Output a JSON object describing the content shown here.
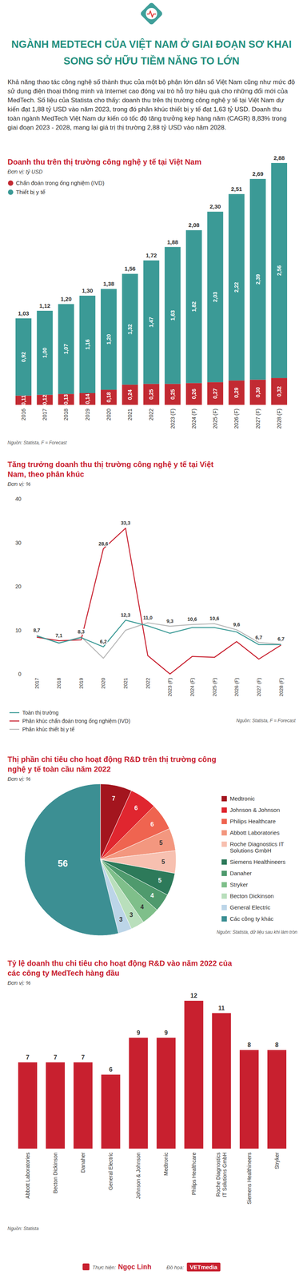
{
  "header": {
    "title": [
      "NGÀNH MEDTECH CỦA VIỆT NAM Ở GIAI ĐOẠN SƠ KHAI",
      "SONG SỞ HỮU TIỀM NĂNG TO LỚN"
    ],
    "intro": "Khả năng thao tác công nghệ số thành thục của một bộ phận lớn dân số Việt Nam cũng như mức độ sử dụng điện thoại thông minh và Internet cao đóng vai trò hỗ trợ hiệu quả cho những đổi mới của MedTech. Số liệu của Statista cho thấy: doanh thu trên thị trường công nghệ y tế tại Việt Nam dự kiến đạt 1,88 tỷ USD vào năm 2023, trong đó phân khúc thiết bị y tế đạt 1,63 tỷ USD. Doanh thu toàn ngành MedTech Việt Nam dự kiến có tốc độ tăng trưởng kép hàng năm (CAGR) 8,83% trong giai đoạn 2023 - 2028, mang lại giá trị thị trường 2,88 tỷ USD vào năm 2028."
  },
  "chart_data": [
    {
      "type": "bar",
      "stacked": true,
      "title": "Doanh thu trên thị trường công nghệ y tế tại Việt Nam",
      "subtitle": "Đơn vị: tỷ USD",
      "source": "Nguồn: Statista, F = Forecast",
      "categories": [
        "2016",
        "2017",
        "2018",
        "2019",
        "2020",
        "2021",
        "2022",
        "2023 (F)",
        "2024 (F)",
        "2025 (F)",
        "2026 (F)",
        "2027 (F)",
        "2028 (F)"
      ],
      "series": [
        {
          "name": "Chẩn đoán trong ống nghiệm (IVD)",
          "color": "#c22a32",
          "values": [
            0.11,
            0.12,
            0.13,
            0.14,
            0.18,
            0.24,
            0.25,
            0.25,
            0.26,
            0.27,
            0.29,
            0.3,
            0.32
          ],
          "value_labels": [
            "0,11",
            "0,12",
            "0,13",
            "0,14",
            "0,18",
            "0,24",
            "0,25",
            "0,25",
            "0,26",
            "0,27",
            "0,29",
            "0,30",
            "0,32"
          ]
        },
        {
          "name": "Thiết bị y tế",
          "color": "#3b9a96",
          "values": [
            0.92,
            1.0,
            1.07,
            1.16,
            1.2,
            1.32,
            1.47,
            1.63,
            1.82,
            2.03,
            2.22,
            2.39,
            2.56
          ],
          "value_labels": [
            "0,92",
            "1,00",
            "1,07",
            "1,16",
            "1,20",
            "1,32",
            "1,47",
            "1,63",
            "1,82",
            "2,03",
            "2,22",
            "2,39",
            "2,56"
          ]
        }
      ],
      "totals": {
        "values": [
          1.03,
          1.12,
          1.2,
          1.3,
          1.38,
          1.56,
          1.72,
          1.88,
          2.08,
          2.3,
          2.51,
          2.69,
          2.88
        ],
        "value_labels": [
          "1,03",
          "1,12",
          "1,20",
          "1,30",
          "1,38",
          "1,56",
          "1,72",
          "1,88",
          "2,08",
          "2,30",
          "2,51",
          "2,69",
          "2,88"
        ]
      },
      "ylim": [
        0,
        2.88
      ],
      "data_labels": true,
      "tick_labels": "x",
      "grid": false,
      "legend": "top-left"
    },
    {
      "type": "line",
      "title": "Tăng trưởng doanh thu thị trường công nghệ y tế tại Việt Nam, theo phân khúc",
      "subtitle": "Đơn vị: %",
      "source": "Nguồn: Statista, F = Forecast",
      "categories": [
        "2017",
        "2018",
        "2019",
        "2020",
        "2021",
        "2022",
        "2023 (F)",
        "2024 (F)",
        "2025 (F)",
        "2026 (F)",
        "2027 (F)",
        "2028 (F)"
      ],
      "series": [
        {
          "name": "Toàn thị trường",
          "color": "#3b9a96",
          "values": [
            8.7,
            7.1,
            8.3,
            6.2,
            12.3,
            11.0,
            9.3,
            10.6,
            10.6,
            9.6,
            6.7,
            6.7
          ],
          "value_labels": [
            "8,7",
            "7,1",
            "8,3",
            "6,2",
            "12,3",
            "11,0",
            "9,3",
            "10,6",
            "10,6",
            "9,6",
            "6,7",
            "6,7"
          ]
        },
        {
          "name": "Phân khúc chẩn đoán trong ống nghiệm (IVD)",
          "color": "#c8202f",
          "values": [
            8.4,
            7.6,
            7.8,
            28.6,
            33.3,
            4.2,
            0,
            4.0,
            3.8,
            7.4,
            3.4,
            6.6
          ],
          "value_labels": [
            null,
            null,
            null,
            "28,6",
            "33,3",
            null,
            null,
            null,
            null,
            null,
            null,
            null
          ]
        },
        {
          "name": "Phân khúc thiết bị y tế",
          "color": "#b8b8b8",
          "values": [
            8.8,
            7.0,
            8.5,
            3.6,
            10.0,
            11.7,
            10.9,
            11.3,
            11.5,
            10.1,
            7.2,
            6.8
          ]
        }
      ],
      "ylim": [
        0,
        40
      ],
      "yticks": [
        0,
        10,
        20,
        30,
        40
      ],
      "grid": false,
      "legend": "bottom-left",
      "data_labels": true
    },
    {
      "type": "pie",
      "title": "Thị phần chi tiêu cho hoạt động R&D trên thị trường công nghệ y tế toàn cầu năm 2022",
      "subtitle": "Đơn vị: %",
      "source": "Nguồn: Statista, dữ liệu sau khi làm tròn",
      "categories": [
        "Medtronic",
        "Johnson & Johnson",
        "Philips Healthcare",
        "Abbott Laboratories",
        "Roche Diagnostics IT Solutions GmbH",
        "Siemens Healthineers",
        "Danaher",
        "Stryker",
        "Becton Dickinson",
        "General Electric",
        "Các công ty khác"
      ],
      "values": [
        7,
        6,
        6,
        5,
        5,
        5,
        4,
        4,
        3,
        3,
        56
      ],
      "colors": [
        "#a3151e",
        "#e0262f",
        "#ef6450",
        "#f3977f",
        "#f7c0b0",
        "#2d7a5a",
        "#4f9a6d",
        "#7fbf8a",
        "#b9dfbc",
        "#bcd5e8",
        "#3c8f93"
      ],
      "data_labels": true,
      "legend": "right"
    },
    {
      "type": "bar",
      "title": "Tỷ lệ doanh thu chi tiêu cho hoạt động R&D vào năm 2022 của các công ty MedTech hàng đầu",
      "subtitle": "Đơn vị: %",
      "source": "Nguồn: Statista",
      "categories": [
        "Abbott Laboratories",
        "Becton Dickinson",
        "Danaher",
        "General Electric",
        "Johnson & Johnson",
        "Medtronic",
        "Philips Healthcare",
        "Roche Diagnostics IT Solutions GmbH",
        "Siemens Healthineers",
        "Stryker"
      ],
      "values": [
        7,
        7,
        7,
        6,
        9,
        9,
        12,
        11,
        8,
        8
      ],
      "color": "#c8202f",
      "ylim": [
        0,
        12
      ],
      "data_labels": true,
      "tick_labels": "x",
      "grid": false
    }
  ],
  "footer": {
    "credit_label": "Thực hiện:",
    "credit_name": "Ngọc Linh",
    "graphics_label": "Đồ họa:",
    "graphics_name": "VETmedia"
  }
}
